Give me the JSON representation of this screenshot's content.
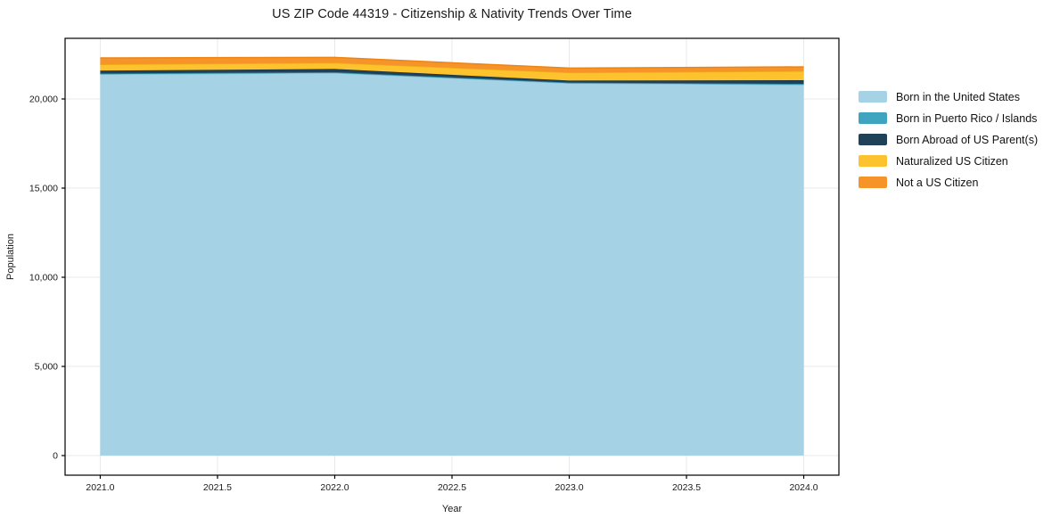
{
  "page": {
    "background": "#ffffff",
    "text_color": "#1a1a1a",
    "grid_color": "#e8e8ec",
    "spine_color": "#000000"
  },
  "chart_data": {
    "type": "area",
    "stacked": true,
    "title": "US ZIP Code 44319 - Citizenship & Nativity Trends Over Time",
    "xlabel": "Year",
    "ylabel": "Population",
    "x": [
      2021,
      2022,
      2023,
      2024
    ],
    "series": [
      {
        "name": "Born in the United States",
        "color": "#a5d3e5",
        "edge_color": "#84bcd6",
        "values": [
          21390,
          21460,
          20890,
          20800
        ]
      },
      {
        "name": "Born in Puerto Rico / Islands",
        "color": "#3ea4c0",
        "edge_color": "#2e8ba5",
        "values": [
          40,
          40,
          30,
          50
        ]
      },
      {
        "name": "Born Abroad of US Parent(s)",
        "color": "#204258",
        "edge_color": "#162f40",
        "values": [
          160,
          180,
          110,
          200
        ]
      },
      {
        "name": "Naturalized US Citizen",
        "color": "#fcc32e",
        "edge_color": "#eead15",
        "values": [
          350,
          350,
          450,
          510
        ]
      },
      {
        "name": "Not a US Citizen",
        "color": "#f79429",
        "edge_color": "#ed8414",
        "values": [
          360,
          300,
          250,
          240
        ]
      }
    ],
    "xlim": [
      2020.85,
      2024.15
    ],
    "ylim": [
      -1100,
      23400
    ],
    "xticks": [
      2021.0,
      2021.5,
      2022.0,
      2022.5,
      2023.0,
      2023.5,
      2024.0
    ],
    "xtick_labels": [
      "2021.0",
      "2021.5",
      "2022.0",
      "2022.5",
      "2023.0",
      "2023.5",
      "2024.0"
    ],
    "yticks": [
      0,
      5000,
      10000,
      15000,
      20000
    ],
    "ytick_labels": [
      "0",
      "5,000",
      "10,000",
      "15,000",
      "20,000"
    ],
    "grid": true,
    "legend_position": "right-outside"
  }
}
